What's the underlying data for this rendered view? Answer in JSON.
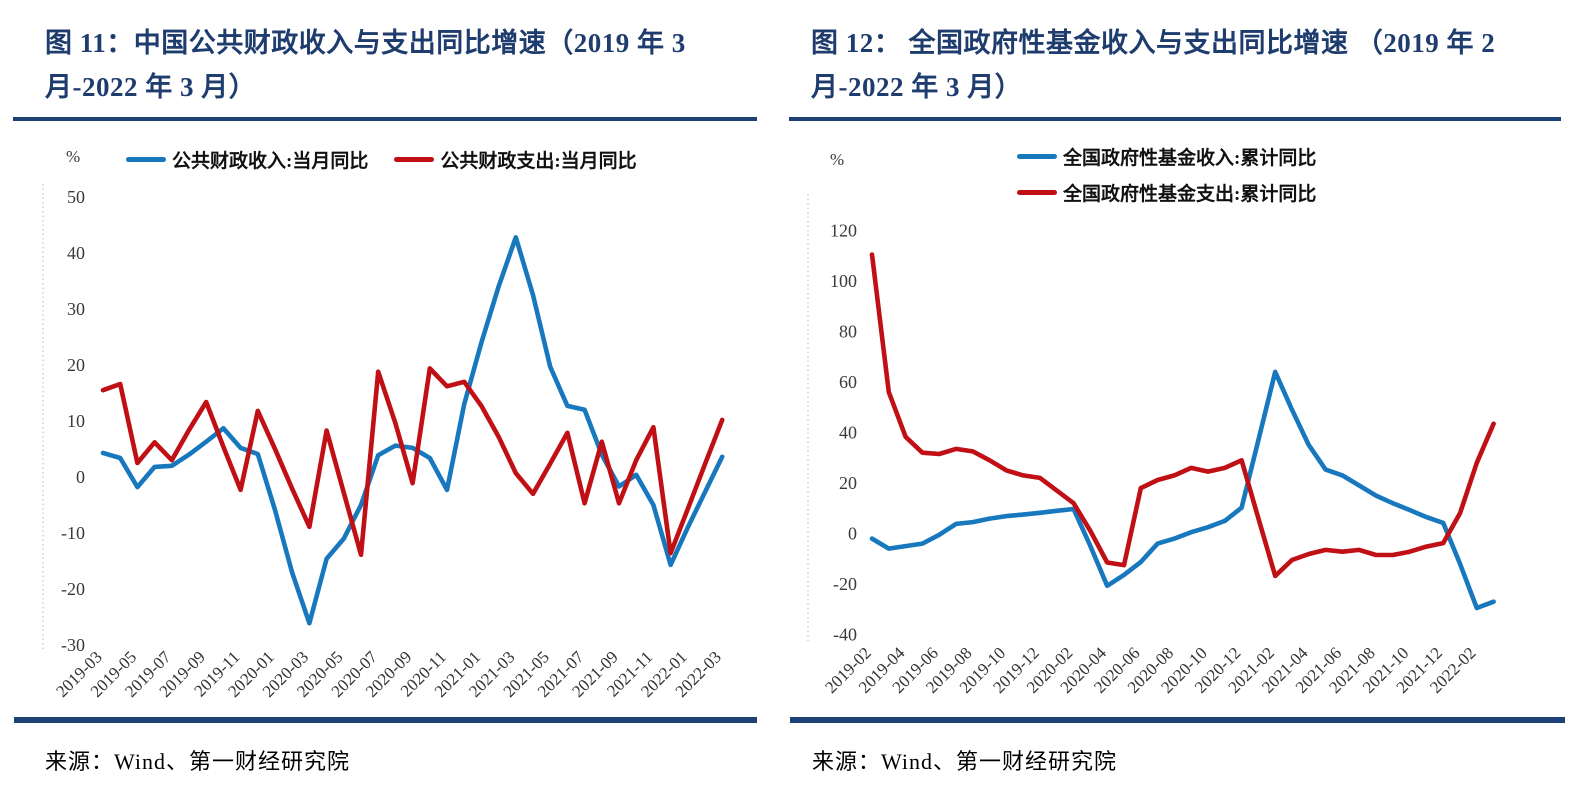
{
  "page": {
    "background": "#ffffff",
    "title_color": "#1F3C6E",
    "rule_color": "#1F4077"
  },
  "chart_data": [
    {
      "type": "line",
      "title": "图 11：中国公共财政收入与支出同比增速（2019 年 3 月-2022 年 3 月）",
      "unit": "%",
      "source": "来源：Wind、第一财经研究院",
      "grid": false,
      "legend_position": "top-horizontal",
      "x_label_every": 2,
      "ylim": [
        -30,
        50
      ],
      "yticks": [
        50,
        40,
        30,
        20,
        10,
        0,
        -10,
        -20,
        -30
      ],
      "months": [
        "2019-03",
        "2019-04",
        "2019-05",
        "2019-06",
        "2019-07",
        "2019-08",
        "2019-09",
        "2019-10",
        "2019-11",
        "2019-12",
        "2020-01",
        "2020-02",
        "2020-03",
        "2020-04",
        "2020-05",
        "2020-06",
        "2020-07",
        "2020-08",
        "2020-09",
        "2020-10",
        "2020-11",
        "2020-12",
        "2021-01",
        "2021-02",
        "2021-03",
        "2021-04",
        "2021-05",
        "2021-06",
        "2021-07",
        "2021-08",
        "2021-09",
        "2021-10",
        "2021-11",
        "2021-12",
        "2022-01",
        "2022-02",
        "2022-03"
      ],
      "series": [
        {
          "name": "公共财政收入:当月同比",
          "color": "#1878BE",
          "values": [
            4.3,
            3.4,
            -1.8,
            1.8,
            2.0,
            4.0,
            6.3,
            8.7,
            5.2,
            4.1,
            -5.9,
            -17.1,
            -26.1,
            -14.6,
            -11.0,
            -5.0,
            3.9,
            5.6,
            5.2,
            3.4,
            -2.3,
            13.0,
            24.0,
            34.0,
            42.8,
            32.5,
            19.7,
            12.7,
            12.0,
            4.0,
            -1.7,
            0.4,
            -5.0,
            -15.7,
            -9.0,
            -2.7,
            3.6
          ]
        },
        {
          "name": "公共财政支出:当月同比",
          "color": "#C01015",
          "values": [
            15.5,
            16.6,
            2.5,
            6.2,
            3.0,
            8.4,
            13.4,
            5.4,
            -2.3,
            11.8,
            5.0,
            -2.1,
            -8.9,
            8.3,
            -2.8,
            -13.9,
            18.8,
            9.6,
            -1.1,
            19.4,
            16.2,
            17.0,
            12.7,
            7.2,
            0.7,
            -3.0,
            2.4,
            7.9,
            -4.7,
            6.3,
            -4.7,
            3.0,
            8.9,
            -13.6,
            -5.7,
            2.3,
            10.2
          ]
        }
      ]
    },
    {
      "type": "line",
      "title": "图 12： 全国政府性基金收入与支出同比增速 （2019 年 2 月-2022 年 3 月）",
      "unit": "%",
      "source": "来源：Wind、第一财经研究院",
      "grid": false,
      "legend_position": "top-vertical",
      "x_label_every": 2,
      "ylim": [
        -40,
        120
      ],
      "yticks": [
        120,
        100,
        80,
        60,
        40,
        20,
        0,
        -20,
        -40
      ],
      "months": [
        "2019-02",
        "2019-03",
        "2019-04",
        "2019-05",
        "2019-06",
        "2019-07",
        "2019-08",
        "2019-09",
        "2019-10",
        "2019-11",
        "2019-12",
        "2020-01",
        "2020-02",
        "2020-03",
        "2020-04",
        "2020-05",
        "2020-06",
        "2020-07",
        "2020-08",
        "2020-09",
        "2020-10",
        "2020-11",
        "2020-12",
        "2021-01",
        "2021-02",
        "2021-03",
        "2021-04",
        "2021-05",
        "2021-06",
        "2021-07",
        "2021-08",
        "2021-09",
        "2021-10",
        "2021-11",
        "2021-12",
        "2022-01",
        "2022-02",
        "2022-03"
      ],
      "series": [
        {
          "name": "全国政府性基金收入:累计同比",
          "color": "#1878BE",
          "values": [
            -2.0,
            -6.0,
            -5.0,
            -4.0,
            -0.5,
            3.8,
            4.5,
            5.9,
            6.9,
            7.5,
            8.2,
            9.0,
            9.7,
            -5.0,
            -20.7,
            -16.4,
            -11.3,
            -4.0,
            -2.0,
            0.5,
            2.5,
            5.0,
            10.2,
            37.0,
            64.0,
            49.0,
            35.0,
            25.3,
            23.0,
            19.0,
            15.0,
            12.0,
            9.3,
            6.5,
            4.2,
            -12.0,
            -29.5,
            -27.0
          ]
        },
        {
          "name": "全国政府性基金支出:累计同比",
          "color": "#C01015",
          "values": [
            110.5,
            56.0,
            38.3,
            32.0,
            31.5,
            33.5,
            32.5,
            29.0,
            25.0,
            23.0,
            22.0,
            17.0,
            12.0,
            1.0,
            -11.5,
            -12.5,
            18.0,
            21.2,
            23.0,
            26.0,
            24.5,
            26.0,
            29.0,
            6.0,
            -16.8,
            -10.5,
            -8.1,
            -6.5,
            -7.2,
            -6.5,
            -8.5,
            -8.5,
            -7.2,
            -5.2,
            -3.8,
            8.0,
            28.0,
            43.5
          ]
        }
      ]
    }
  ]
}
